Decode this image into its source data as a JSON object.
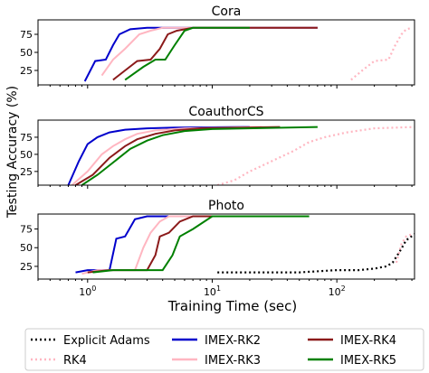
{
  "figure": {
    "ylabel": "Testing Accuracy (%)",
    "xlabel": "Training Time (sec)"
  },
  "legend": [
    {
      "name": "Explicit Adams",
      "color": "#000000",
      "dash": "dotted"
    },
    {
      "name": "RK4",
      "color": "#ffb6c1",
      "dash": "dotted"
    },
    {
      "name": "IMEX-RK2",
      "color": "#0000cc",
      "dash": "solid"
    },
    {
      "name": "IMEX-RK3",
      "color": "#ffb6c1",
      "dash": "solid"
    },
    {
      "name": "IMEX-RK4",
      "color": "#8b1a1a",
      "dash": "solid"
    },
    {
      "name": "IMEX-RK5",
      "color": "#008000",
      "dash": "solid"
    }
  ],
  "chart_data": [
    {
      "type": "line",
      "title": "Cora",
      "xscale": "log",
      "xlim": [
        0.4,
        420
      ],
      "ylim": [
        5,
        95
      ],
      "yticks": [
        25,
        50,
        75
      ],
      "xticks": [
        1,
        10,
        100
      ],
      "xticklabels": [
        "10^0",
        "10^1",
        "10^2"
      ],
      "series": [
        {
          "name": "RK4",
          "x": [
            130,
            160,
            200,
            260,
            290,
            330,
            360,
            400
          ],
          "y": [
            12,
            25,
            38,
            40,
            58,
            75,
            82,
            84
          ]
        },
        {
          "name": "IMEX-RK2",
          "x": [
            0.95,
            1.15,
            1.4,
            1.6,
            1.8,
            2.2,
            3,
            5,
            70
          ],
          "y": [
            10,
            38,
            40,
            60,
            75,
            82,
            84,
            84,
            84
          ]
        },
        {
          "name": "IMEX-RK3",
          "x": [
            1.3,
            1.6,
            2.0,
            2.6,
            3.2,
            4,
            5,
            70
          ],
          "y": [
            18,
            40,
            55,
            75,
            80,
            84,
            84,
            84
          ]
        },
        {
          "name": "IMEX-RK4",
          "x": [
            1.6,
            2.0,
            2.5,
            3.2,
            3.8,
            4.4,
            5.2,
            7,
            70
          ],
          "y": [
            12,
            25,
            38,
            40,
            55,
            75,
            80,
            84,
            84
          ]
        },
        {
          "name": "IMEX-RK5",
          "x": [
            2.0,
            2.8,
            3.5,
            4.2,
            5.0,
            6.0,
            7.0,
            20
          ],
          "y": [
            12,
            30,
            40,
            40,
            60,
            80,
            84,
            84
          ]
        }
      ]
    },
    {
      "type": "line",
      "title": "CoauthorCS",
      "xscale": "log",
      "xlim": [
        0.4,
        420
      ],
      "ylim": [
        5,
        100
      ],
      "yticks": [
        25,
        50,
        75
      ],
      "xticks": [
        1,
        10,
        100
      ],
      "xticklabels": [
        "10^0",
        "10^1",
        "10^2"
      ],
      "series": [
        {
          "name": "RK4",
          "x": [
            11,
            15,
            20,
            30,
            45,
            60,
            80,
            120,
            200,
            420
          ],
          "y": [
            5,
            12,
            25,
            40,
            55,
            68,
            75,
            82,
            88,
            90
          ]
        },
        {
          "name": "IMEX-RK2",
          "x": [
            0.7,
            0.85,
            1.0,
            1.2,
            1.5,
            2.0,
            3.0,
            5.0,
            20
          ],
          "y": [
            5,
            40,
            65,
            75,
            82,
            86,
            88,
            89,
            90
          ]
        },
        {
          "name": "IMEX-RK3",
          "x": [
            0.75,
            1.0,
            1.3,
            1.6,
            2.0,
            2.5,
            3.5,
            6.0,
            25
          ],
          "y": [
            5,
            25,
            50,
            62,
            72,
            80,
            85,
            88,
            90
          ]
        },
        {
          "name": "IMEX-RK4",
          "x": [
            0.8,
            1.1,
            1.5,
            2.0,
            2.5,
            3.5,
            5.0,
            8.0,
            35
          ],
          "y": [
            5,
            20,
            45,
            62,
            72,
            80,
            85,
            88,
            90
          ]
        },
        {
          "name": "IMEX-RK5",
          "x": [
            0.9,
            1.2,
            1.6,
            2.2,
            3.0,
            4.0,
            6.0,
            10,
            70
          ],
          "y": [
            5,
            20,
            38,
            58,
            70,
            78,
            84,
            87,
            90
          ]
        }
      ]
    },
    {
      "type": "line",
      "title": "Photo",
      "xscale": "log",
      "xlim": [
        0.4,
        420
      ],
      "ylim": [
        8,
        95
      ],
      "yticks": [
        25,
        50,
        75
      ],
      "xticks": [
        1,
        10,
        100
      ],
      "xticklabels": [
        "10^0",
        "10^1",
        "10^2"
      ],
      "series": [
        {
          "name": "Explicit Adams",
          "x": [
            11,
            50,
            100,
            150,
            200,
            250,
            280,
            320,
            360,
            420
          ],
          "y": [
            17,
            17,
            20,
            20,
            22,
            25,
            30,
            45,
            60,
            68
          ]
        },
        {
          "name": "RK4",
          "x": [
            300,
            330,
            360,
            400
          ],
          "y": [
            30,
            55,
            65,
            68
          ]
        },
        {
          "name": "IMEX-RK2",
          "x": [
            0.8,
            1.0,
            1.2,
            1.5,
            1.7,
            2.0,
            2.4,
            3.0,
            20
          ],
          "y": [
            17,
            20,
            20,
            20,
            62,
            65,
            88,
            92,
            92
          ]
        },
        {
          "name": "IMEX-RK3",
          "x": [
            0.9,
            1.2,
            1.6,
            2.0,
            2.4,
            2.8,
            3.2,
            3.8,
            4.5,
            20
          ],
          "y": [
            15,
            20,
            20,
            20,
            20,
            50,
            70,
            85,
            92,
            92
          ]
        },
        {
          "name": "IMEX-RK4",
          "x": [
            1.0,
            1.5,
            2.0,
            2.5,
            3.0,
            3.5,
            3.8,
            4.5,
            5.5,
            7.0,
            20
          ],
          "y": [
            17,
            20,
            20,
            20,
            20,
            40,
            65,
            70,
            85,
            92,
            92
          ]
        },
        {
          "name": "IMEX-RK5",
          "x": [
            1.1,
            1.6,
            2.2,
            3.0,
            4.0,
            4.8,
            5.5,
            7.0,
            10,
            60
          ],
          "y": [
            17,
            20,
            20,
            20,
            20,
            40,
            65,
            75,
            92,
            92
          ]
        }
      ]
    }
  ]
}
